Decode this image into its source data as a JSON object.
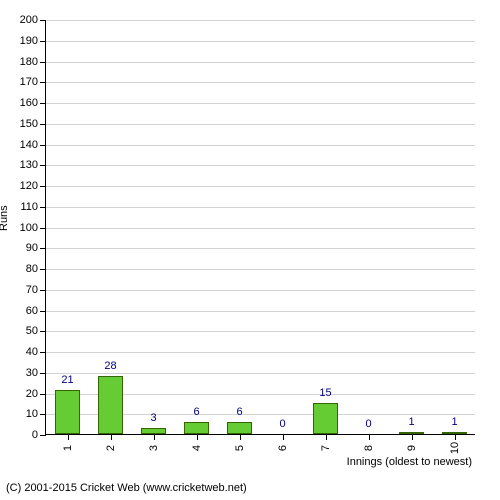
{
  "chart": {
    "type": "bar",
    "categories": [
      "1",
      "2",
      "3",
      "4",
      "5",
      "6",
      "7",
      "8",
      "9",
      "10"
    ],
    "values": [
      21,
      28,
      3,
      6,
      6,
      0,
      15,
      0,
      1,
      1
    ],
    "bar_color": "#66cc33",
    "bar_border_color": "#336600",
    "value_label_color": "#000080",
    "value_label_fontsize": 11,
    "bar_width_ratio": 0.6,
    "ylim": [
      0,
      200
    ],
    "ytick_step": 10,
    "ylabel": "Runs",
    "xlabel": "Innings (oldest to newest)",
    "axis_label_fontsize": 11,
    "tick_label_fontsize": 11,
    "background_color": "#ffffff",
    "grid_color": "#d3d3d3",
    "axis_color": "#000000"
  },
  "copyright": "(C) 2001-2015 Cricket Web (www.cricketweb.net)"
}
